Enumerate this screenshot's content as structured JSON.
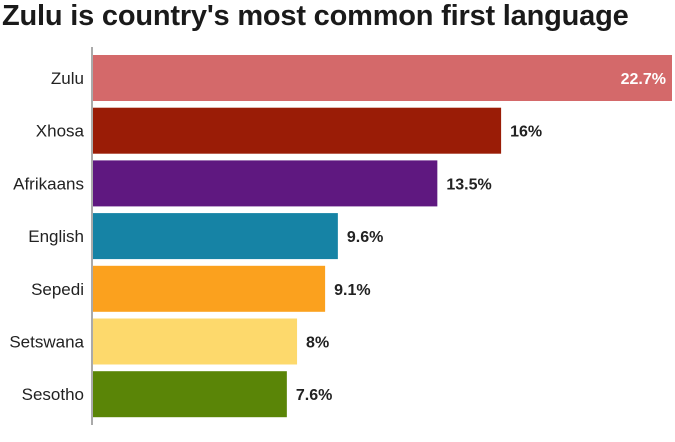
{
  "chart_data": {
    "type": "bar",
    "orientation": "horizontal",
    "title": "Zulu is country's most common first language",
    "categories": [
      "Zulu",
      "Xhosa",
      "Afrikaans",
      "English",
      "Sepedi",
      "Setswana",
      "Sesotho"
    ],
    "values": [
      22.7,
      16,
      13.5,
      9.6,
      9.1,
      8,
      7.6
    ],
    "value_labels": [
      "22.7%",
      "16%",
      "13.5%",
      "9.6%",
      "9.1%",
      "8%",
      "7.6%"
    ],
    "colors": [
      "#d4696a",
      "#9a1c06",
      "#5f1880",
      "#1683a5",
      "#fba11e",
      "#fdd96c",
      "#5a8507"
    ],
    "xlim": [
      0,
      22.7
    ],
    "grid": false,
    "legend": "none",
    "xlabel": "",
    "ylabel": ""
  }
}
